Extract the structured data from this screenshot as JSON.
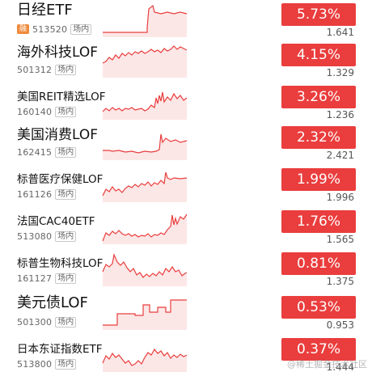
{
  "rows": [
    {
      "name": "日经ETF",
      "badge": "融",
      "code": "513520",
      "market": "场内",
      "change": "5.73%",
      "price": "1.641",
      "spark": [
        [
          0,
          38
        ],
        [
          55,
          38
        ],
        [
          55,
          32
        ],
        [
          57,
          9
        ],
        [
          62,
          5
        ],
        [
          64,
          13
        ],
        [
          72,
          15
        ],
        [
          80,
          13
        ],
        [
          88,
          15
        ],
        [
          96,
          13
        ],
        [
          104,
          15
        ]
      ]
    },
    {
      "name": "海外科技LOF",
      "code": "501312",
      "market": "场内",
      "change": "4.15%",
      "price": "1.329",
      "spark": [
        [
          0,
          26
        ],
        [
          4,
          24
        ],
        [
          8,
          19
        ],
        [
          12,
          22
        ],
        [
          16,
          16
        ],
        [
          20,
          20
        ],
        [
          24,
          14
        ],
        [
          28,
          17
        ],
        [
          32,
          13
        ],
        [
          36,
          16
        ],
        [
          40,
          12
        ],
        [
          44,
          14
        ],
        [
          48,
          11
        ],
        [
          52,
          14
        ],
        [
          56,
          12
        ],
        [
          60,
          9
        ],
        [
          64,
          12
        ],
        [
          68,
          10
        ],
        [
          72,
          13
        ],
        [
          76,
          8
        ],
        [
          80,
          11
        ],
        [
          84,
          9
        ],
        [
          88,
          5
        ],
        [
          92,
          9
        ],
        [
          96,
          6
        ],
        [
          100,
          8
        ],
        [
          104,
          10
        ]
      ]
    },
    {
      "name": "美国REIT精选LOF",
      "code": "160140",
      "market": "场内",
      "change": "3.26%",
      "price": "1.236",
      "spark": [
        [
          0,
          34
        ],
        [
          4,
          30
        ],
        [
          8,
          33
        ],
        [
          12,
          29
        ],
        [
          16,
          32
        ],
        [
          20,
          30
        ],
        [
          24,
          33
        ],
        [
          28,
          30
        ],
        [
          32,
          31
        ],
        [
          36,
          29
        ],
        [
          40,
          32
        ],
        [
          44,
          31
        ],
        [
          48,
          30
        ],
        [
          52,
          33
        ],
        [
          56,
          31
        ],
        [
          60,
          26
        ],
        [
          64,
          29
        ],
        [
          66,
          17
        ],
        [
          68,
          24
        ],
        [
          70,
          14
        ],
        [
          72,
          21
        ],
        [
          74,
          10
        ],
        [
          76,
          22
        ],
        [
          80,
          16
        ],
        [
          84,
          20
        ],
        [
          88,
          12
        ],
        [
          92,
          18
        ],
        [
          96,
          14
        ],
        [
          100,
          20
        ],
        [
          104,
          17
        ]
      ]
    },
    {
      "name": "美国消费LOF",
      "code": "162415",
      "market": "场内",
      "change": "2.32%",
      "price": "2.421",
      "spark": [
        [
          0,
          32
        ],
        [
          8,
          32
        ],
        [
          12,
          33
        ],
        [
          20,
          32
        ],
        [
          28,
          34
        ],
        [
          36,
          33
        ],
        [
          44,
          35
        ],
        [
          52,
          33
        ],
        [
          60,
          34
        ],
        [
          66,
          33
        ],
        [
          70,
          31
        ],
        [
          72,
          12
        ],
        [
          74,
          22
        ],
        [
          78,
          17
        ],
        [
          84,
          21
        ],
        [
          90,
          19
        ],
        [
          96,
          22
        ],
        [
          104,
          20
        ]
      ]
    },
    {
      "name": "标普医疗保健LOF",
      "code": "161126",
      "market": "场内",
      "change": "1.99%",
      "price": "1.996",
      "spark": [
        [
          0,
          36
        ],
        [
          4,
          28
        ],
        [
          8,
          31
        ],
        [
          12,
          25
        ],
        [
          16,
          30
        ],
        [
          20,
          28
        ],
        [
          24,
          32
        ],
        [
          28,
          27
        ],
        [
          32,
          24
        ],
        [
          36,
          26
        ],
        [
          40,
          22
        ],
        [
          44,
          25
        ],
        [
          48,
          21
        ],
        [
          52,
          23
        ],
        [
          56,
          19
        ],
        [
          60,
          24
        ],
        [
          64,
          20
        ],
        [
          68,
          22
        ],
        [
          72,
          17
        ],
        [
          76,
          21
        ],
        [
          78,
          7
        ],
        [
          80,
          14
        ],
        [
          84,
          16
        ],
        [
          88,
          14
        ],
        [
          96,
          15
        ],
        [
          104,
          14
        ]
      ]
    },
    {
      "name": "法国CAC40ETF",
      "code": "513080",
      "market": "场内",
      "change": "1.76%",
      "price": "1.565",
      "spark": [
        [
          0,
          40
        ],
        [
          4,
          30
        ],
        [
          8,
          33
        ],
        [
          12,
          28
        ],
        [
          16,
          31
        ],
        [
          20,
          27
        ],
        [
          24,
          31
        ],
        [
          28,
          33
        ],
        [
          32,
          31
        ],
        [
          36,
          34
        ],
        [
          40,
          32
        ],
        [
          44,
          35
        ],
        [
          48,
          33
        ],
        [
          52,
          34
        ],
        [
          56,
          31
        ],
        [
          60,
          35
        ],
        [
          64,
          32
        ],
        [
          68,
          33
        ],
        [
          72,
          30
        ],
        [
          76,
          32
        ],
        [
          80,
          26
        ],
        [
          84,
          22
        ],
        [
          86,
          8
        ],
        [
          88,
          20
        ],
        [
          90,
          12
        ],
        [
          92,
          19
        ],
        [
          96,
          10
        ],
        [
          100,
          13
        ],
        [
          104,
          7
        ]
      ]
    },
    {
      "name": "标普生物科技LOF",
      "code": "161127",
      "market": "场内",
      "change": "0.81%",
      "price": "1.375",
      "spark": [
        [
          0,
          26
        ],
        [
          4,
          17
        ],
        [
          8,
          20
        ],
        [
          12,
          16
        ],
        [
          14,
          5
        ],
        [
          18,
          14
        ],
        [
          22,
          18
        ],
        [
          26,
          14
        ],
        [
          30,
          21
        ],
        [
          34,
          26
        ],
        [
          38,
          22
        ],
        [
          42,
          30
        ],
        [
          46,
          27
        ],
        [
          50,
          33
        ],
        [
          54,
          29
        ],
        [
          58,
          32
        ],
        [
          62,
          28
        ],
        [
          66,
          31
        ],
        [
          70,
          26
        ],
        [
          74,
          30
        ],
        [
          78,
          22
        ],
        [
          82,
          26
        ],
        [
          86,
          20
        ],
        [
          90,
          26
        ],
        [
          94,
          24
        ],
        [
          98,
          31
        ],
        [
          102,
          28
        ],
        [
          104,
          27
        ]
      ]
    },
    {
      "name": "美元债LOF",
      "code": "501300",
      "market": "场内",
      "change": "0.53%",
      "price": "0.953",
      "spark": [
        [
          0,
          38
        ],
        [
          18,
          38
        ],
        [
          18,
          24
        ],
        [
          40,
          24
        ],
        [
          40,
          26
        ],
        [
          50,
          26
        ],
        [
          50,
          13
        ],
        [
          58,
          13
        ],
        [
          58,
          22
        ],
        [
          68,
          22
        ],
        [
          68,
          16
        ],
        [
          78,
          16
        ],
        [
          78,
          22
        ],
        [
          84,
          22
        ],
        [
          84,
          7
        ],
        [
          104,
          7
        ]
      ]
    },
    {
      "name": "日本东证指数ETF",
      "code": "513800",
      "market": "场内",
      "change": "0.37%",
      "price": "1.444",
      "spark": [
        [
          0,
          33
        ],
        [
          4,
          24
        ],
        [
          8,
          28
        ],
        [
          12,
          21
        ],
        [
          16,
          26
        ],
        [
          20,
          23
        ],
        [
          24,
          28
        ],
        [
          28,
          33
        ],
        [
          32,
          30
        ],
        [
          36,
          36
        ],
        [
          40,
          34
        ],
        [
          44,
          30
        ],
        [
          48,
          34
        ],
        [
          52,
          26
        ],
        [
          56,
          20
        ],
        [
          60,
          23
        ],
        [
          64,
          16
        ],
        [
          68,
          21
        ],
        [
          72,
          18
        ],
        [
          76,
          24
        ],
        [
          80,
          20
        ],
        [
          84,
          27
        ],
        [
          88,
          23
        ],
        [
          92,
          26
        ],
        [
          96,
          22
        ],
        [
          100,
          25
        ],
        [
          104,
          23
        ]
      ]
    }
  ],
  "colors": {
    "accent": "#ea3d3d",
    "badge": "#f08a3c"
  },
  "watermark": "@稀土掘金技术社区"
}
